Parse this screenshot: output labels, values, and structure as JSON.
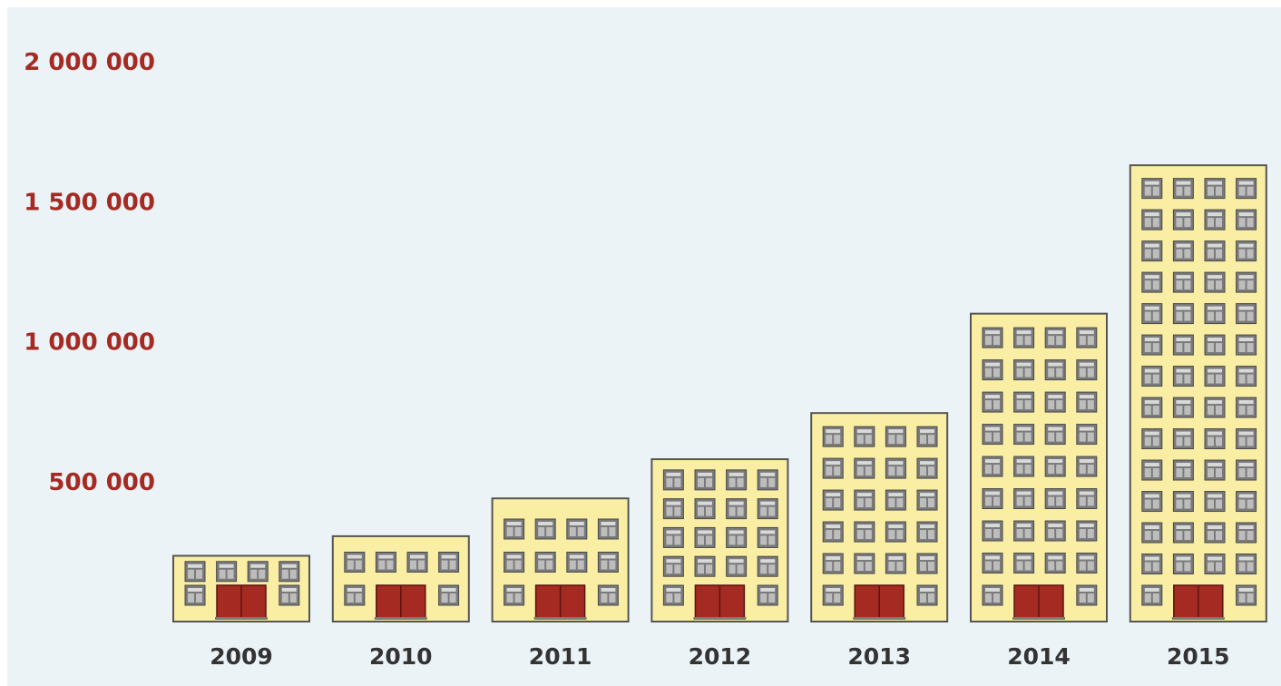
{
  "chart_data": {
    "type": "bar",
    "title": "",
    "xlabel": "",
    "ylabel": "",
    "categories": [
      "2009",
      "2010",
      "2011",
      "2012",
      "2013",
      "2014",
      "2015"
    ],
    "values": [
      235000,
      305000,
      440000,
      580000,
      745000,
      1100000,
      1630000
    ],
    "ylim": [
      0,
      2000000
    ],
    "yticks": [
      {
        "value": 500000,
        "label": "500 000"
      },
      {
        "value": 1000000,
        "label": "1 000 000"
      },
      {
        "value": 1500000,
        "label": "1 500 000"
      },
      {
        "value": 2000000,
        "label": "2 000 000"
      }
    ],
    "grid": false,
    "bar_style": "building-icon",
    "colors": {
      "background": "#ebf3f7",
      "building": "#f9eea3",
      "building_outline": "#555555",
      "window": "#7a7a7a",
      "door": "#a52a22",
      "tick_label": "#a52a22",
      "category_label": "#333333"
    }
  }
}
